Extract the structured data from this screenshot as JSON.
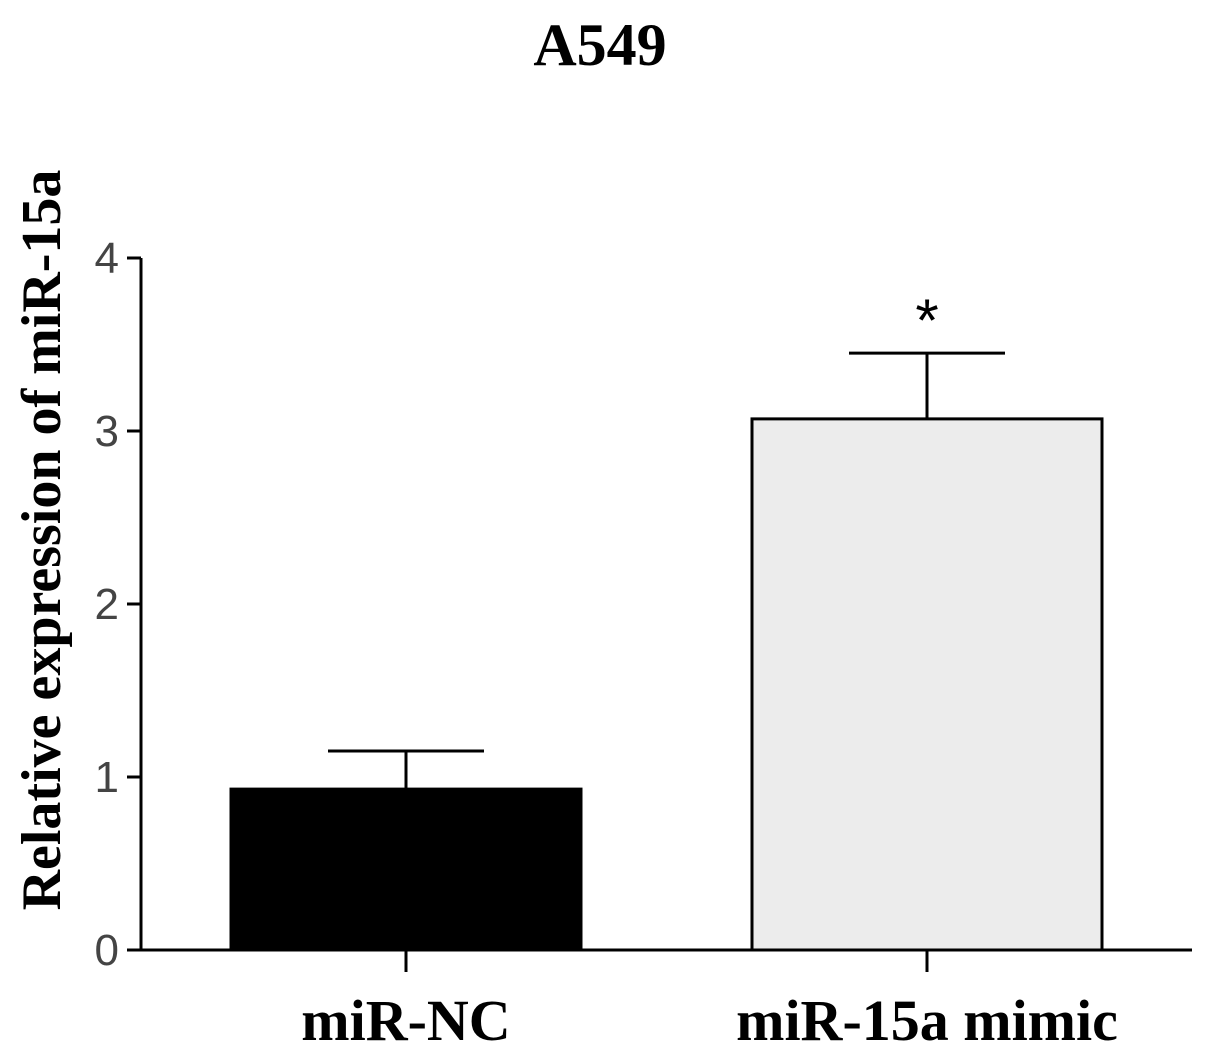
{
  "chart_data": {
    "type": "bar",
    "title": "A549",
    "ylabel": "Relative expression of miR-15a",
    "xlabel": "",
    "categories": [
      "miR-NC",
      "miR-15a mimic"
    ],
    "values": [
      0.93,
      3.07
    ],
    "errors": [
      0.22,
      0.38
    ],
    "significance": [
      "",
      "*"
    ],
    "ylim": [
      0,
      4
    ],
    "yticks": [
      0,
      1,
      2,
      3,
      4
    ],
    "bar_colors": [
      "#000000",
      "#ececec"
    ],
    "grid": false,
    "legend": "none"
  }
}
